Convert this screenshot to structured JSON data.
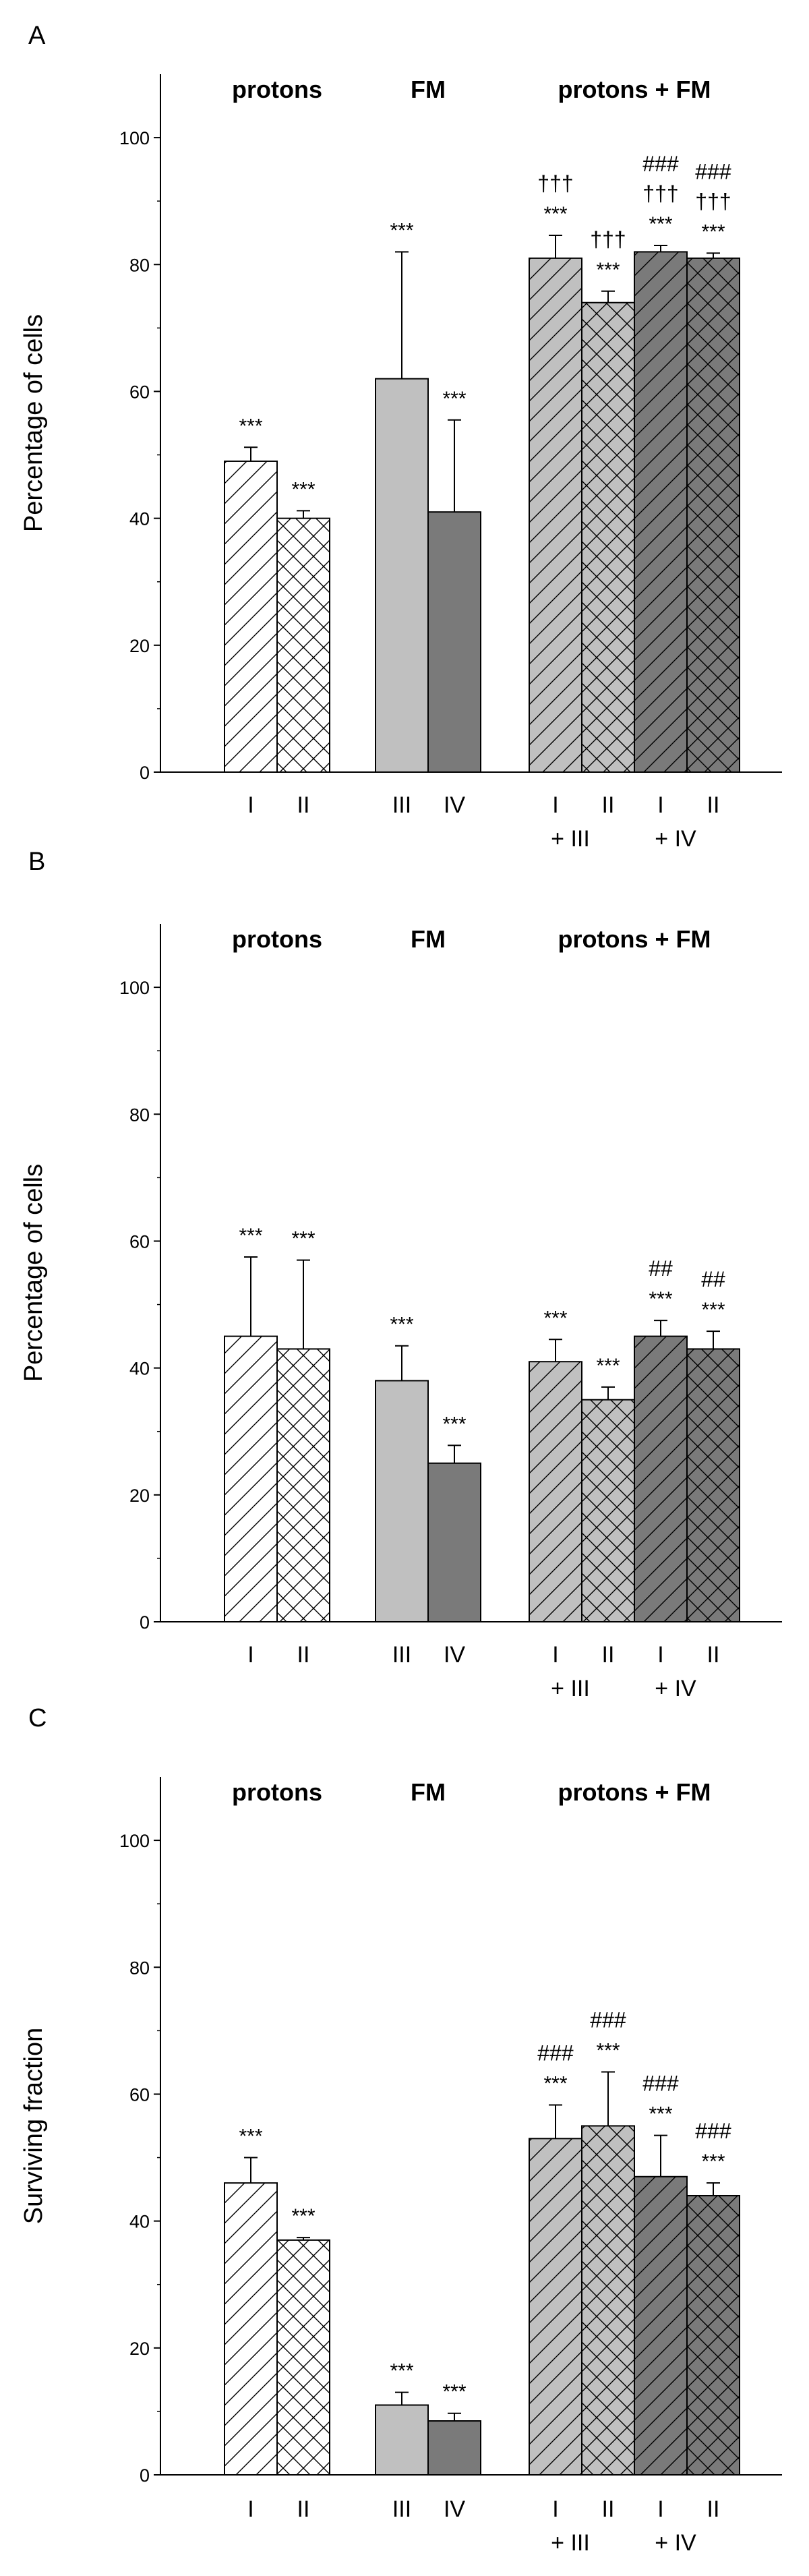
{
  "chart_data": [
    {
      "panel": "A",
      "type": "bar",
      "ylabel": "Percentage of cells",
      "ylim": [
        0,
        110
      ],
      "yticks": [
        0,
        20,
        40,
        60,
        80,
        100
      ],
      "groups": [
        {
          "label": "protons",
          "bars": [
            {
              "cat": "I",
              "value": 49,
              "err": 2.2,
              "fill": "#ffffff",
              "pattern": "diag",
              "marks": [
                "***"
              ]
            },
            {
              "cat": "II",
              "value": 40,
              "err": 1.2,
              "fill": "#ffffff",
              "pattern": "cross",
              "marks": [
                "***"
              ]
            }
          ]
        },
        {
          "label": "FM",
          "bars": [
            {
              "cat": "III",
              "value": 62,
              "err": 20.0,
              "fill": "#c0c0c0",
              "pattern": "none",
              "marks": [
                "***"
              ]
            },
            {
              "cat": "IV",
              "value": 41,
              "err": 14.5,
              "fill": "#7a7a7a",
              "pattern": "none",
              "marks": [
                "***"
              ]
            }
          ]
        },
        {
          "label": "protons + FM",
          "bars": [
            {
              "cat": "I",
              "sub": "+ III",
              "value": 81,
              "err": 3.6,
              "fill": "#c0c0c0",
              "pattern": "diag",
              "marks": [
                "***",
                "†††"
              ]
            },
            {
              "cat": "II",
              "sub": "",
              "value": 74,
              "err": 1.8,
              "fill": "#c0c0c0",
              "pattern": "cross",
              "marks": [
                "***",
                "†††"
              ]
            },
            {
              "cat": "I",
              "sub": "+ IV",
              "value": 82,
              "err": 1.0,
              "fill": "#7a7a7a",
              "pattern": "diag",
              "marks": [
                "***",
                "†††",
                "###"
              ]
            },
            {
              "cat": "II",
              "sub": "",
              "value": 81,
              "err": 0.8,
              "fill": "#7a7a7a",
              "pattern": "cross",
              "marks": [
                "***",
                "†††",
                "###"
              ]
            }
          ]
        }
      ]
    },
    {
      "panel": "B",
      "type": "bar",
      "ylabel": "Percentage of cells",
      "ylim": [
        0,
        110
      ],
      "yticks": [
        0,
        20,
        40,
        60,
        80,
        100
      ],
      "groups": [
        {
          "label": "protons",
          "bars": [
            {
              "cat": "I",
              "value": 45,
              "err": 12.5,
              "fill": "#ffffff",
              "pattern": "diag",
              "marks": [
                "***"
              ]
            },
            {
              "cat": "II",
              "value": 43,
              "err": 14.0,
              "fill": "#ffffff",
              "pattern": "cross",
              "marks": [
                "***"
              ]
            }
          ]
        },
        {
          "label": "FM",
          "bars": [
            {
              "cat": "III",
              "value": 38,
              "err": 5.5,
              "fill": "#c0c0c0",
              "pattern": "none",
              "marks": [
                "***"
              ]
            },
            {
              "cat": "IV",
              "value": 25,
              "err": 2.8,
              "fill": "#7a7a7a",
              "pattern": "none",
              "marks": [
                "***"
              ]
            }
          ]
        },
        {
          "label": "protons + FM",
          "bars": [
            {
              "cat": "I",
              "sub": "+ III",
              "value": 41,
              "err": 3.5,
              "fill": "#c0c0c0",
              "pattern": "diag",
              "marks": [
                "***"
              ]
            },
            {
              "cat": "II",
              "sub": "",
              "value": 35,
              "err": 2.0,
              "fill": "#c0c0c0",
              "pattern": "cross",
              "marks": [
                "***"
              ]
            },
            {
              "cat": "I",
              "sub": "+ IV",
              "value": 45,
              "err": 2.5,
              "fill": "#7a7a7a",
              "pattern": "diag",
              "marks": [
                "***",
                "##"
              ]
            },
            {
              "cat": "II",
              "sub": "",
              "value": 43,
              "err": 2.8,
              "fill": "#7a7a7a",
              "pattern": "cross",
              "marks": [
                "***",
                "##"
              ]
            }
          ]
        }
      ]
    },
    {
      "panel": "C",
      "type": "bar",
      "ylabel": "Surviving fraction",
      "ylim": [
        0,
        110
      ],
      "yticks": [
        0,
        20,
        40,
        60,
        80,
        100
      ],
      "groups": [
        {
          "label": "protons",
          "bars": [
            {
              "cat": "I",
              "value": 46,
              "err": 4.0,
              "fill": "#ffffff",
              "pattern": "diag",
              "marks": [
                "***"
              ]
            },
            {
              "cat": "II",
              "value": 37,
              "err": 0.4,
              "fill": "#ffffff",
              "pattern": "cross",
              "marks": [
                "***"
              ]
            }
          ]
        },
        {
          "label": "FM",
          "bars": [
            {
              "cat": "III",
              "value": 11,
              "err": 2.0,
              "fill": "#c0c0c0",
              "pattern": "none",
              "marks": [
                "***"
              ]
            },
            {
              "cat": "IV",
              "value": 8.5,
              "err": 1.2,
              "fill": "#7a7a7a",
              "pattern": "none",
              "marks": [
                "***"
              ]
            }
          ]
        },
        {
          "label": "protons + FM",
          "bars": [
            {
              "cat": "I",
              "sub": "+ III",
              "value": 53,
              "err": 5.3,
              "fill": "#c0c0c0",
              "pattern": "diag",
              "marks": [
                "***",
                "###"
              ]
            },
            {
              "cat": "II",
              "sub": "",
              "value": 55,
              "err": 8.5,
              "fill": "#c0c0c0",
              "pattern": "cross",
              "marks": [
                "***",
                "###"
              ]
            },
            {
              "cat": "I",
              "sub": "+ IV",
              "value": 47,
              "err": 6.5,
              "fill": "#7a7a7a",
              "pattern": "diag",
              "marks": [
                "***",
                "###"
              ]
            },
            {
              "cat": "II",
              "sub": "",
              "value": 44,
              "err": 2.0,
              "fill": "#7a7a7a",
              "pattern": "cross",
              "marks": [
                "***",
                "###"
              ]
            }
          ]
        }
      ]
    }
  ]
}
